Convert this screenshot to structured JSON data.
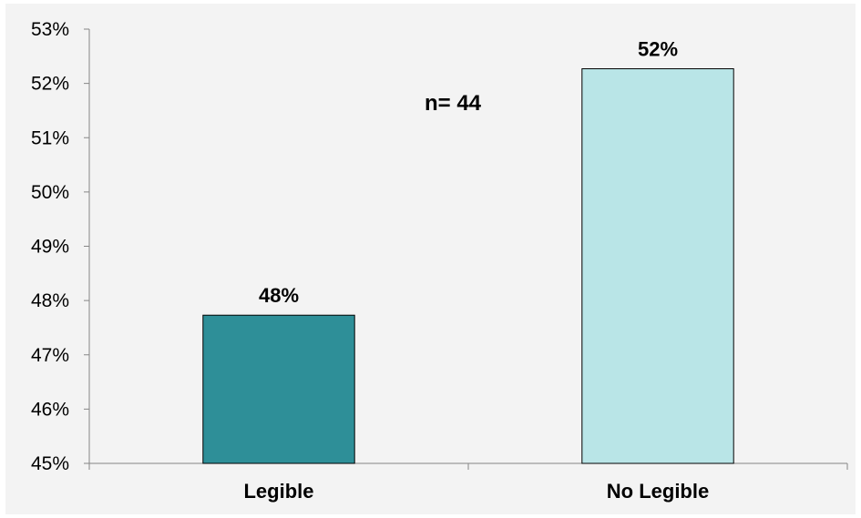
{
  "chart_data": {
    "type": "bar",
    "categories": [
      "Legible",
      "No Legible"
    ],
    "values": [
      47.73,
      52.27
    ],
    "data_labels": [
      "48%",
      "52%"
    ],
    "colors": [
      "#2e8f98",
      "#b9e5e7"
    ],
    "bar_outline": "#000000",
    "ylim": [
      45,
      53
    ],
    "yticks": [
      45,
      46,
      47,
      48,
      49,
      50,
      51,
      52,
      53
    ],
    "ytick_labels": [
      "45%",
      "46%",
      "47%",
      "48%",
      "49%",
      "50%",
      "51%",
      "52%",
      "53%"
    ],
    "annotation": "n= 44",
    "title": "",
    "xlabel": "",
    "ylabel": "",
    "grid": false,
    "legend": false
  }
}
